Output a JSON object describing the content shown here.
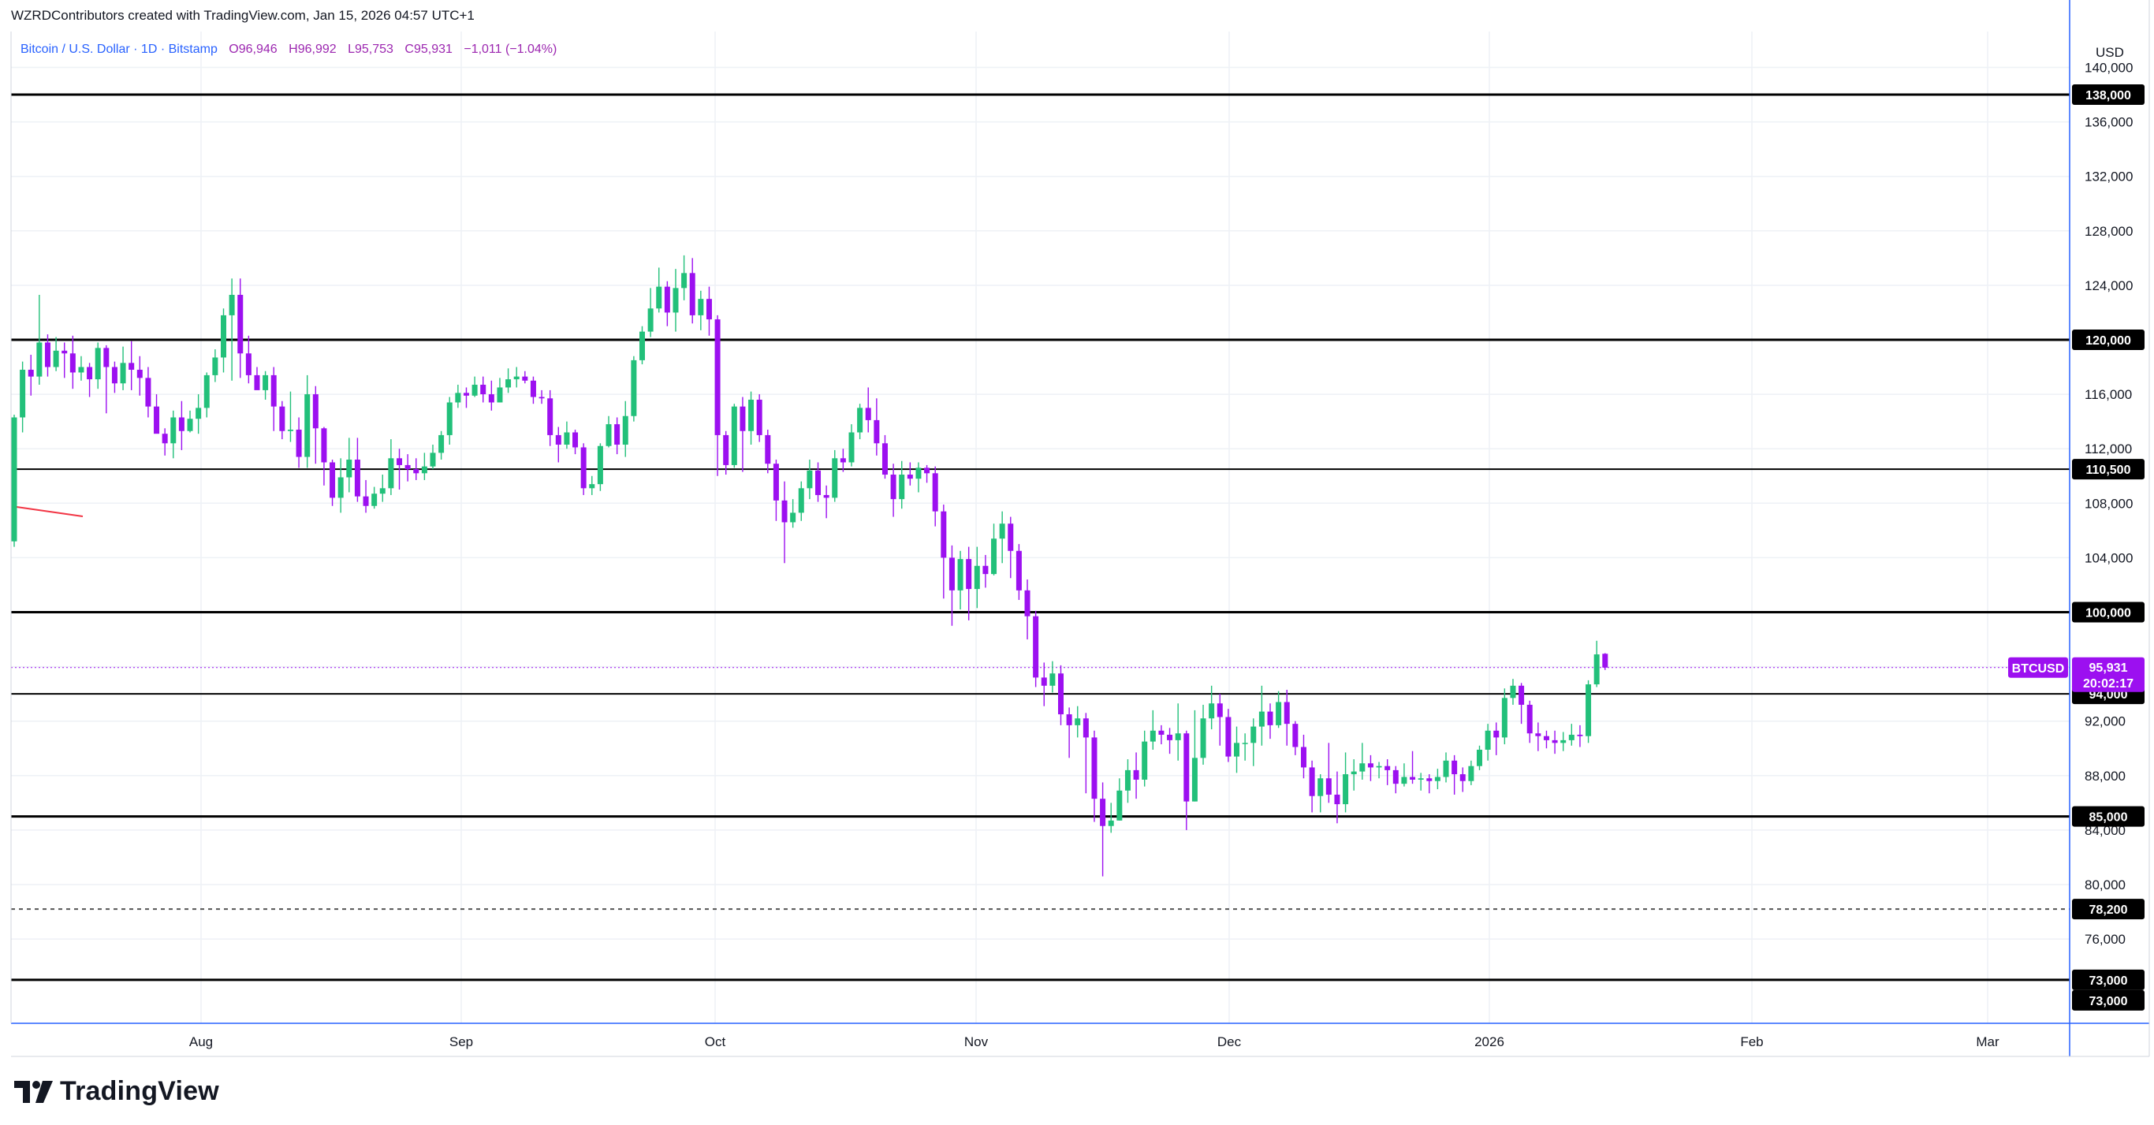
{
  "header": {
    "attribution": "WZRDContributors created with TradingView.com, Jan 15, 2026 04:57 UTC+1"
  },
  "symbol_bar": {
    "name": "Bitcoin / U.S. Dollar · 1D · Bitstamp",
    "open": "O96,946",
    "high": "H96,992",
    "low": "L95,753",
    "close": "C95,931",
    "change": "−1,011 (−1.04%)"
  },
  "price_axis": {
    "currency": "USD",
    "ticks": [
      "140,000",
      "136,000",
      "132,000",
      "128,000",
      "124,000",
      "116,000",
      "112,000",
      "108,000",
      "104,000",
      "92,000",
      "88,000",
      "84,000",
      "80,000",
      "76,000"
    ]
  },
  "time_axis": {
    "ticks": [
      "Aug",
      "Sep",
      "Oct",
      "Nov",
      "Dec",
      "2026",
      "Feb",
      "Mar"
    ]
  },
  "last_price": {
    "symbol": "BTCUSD",
    "value": "95,931",
    "countdown": "20:02:17"
  },
  "horizontal_levels": [
    {
      "value": 138000,
      "label": "138,000",
      "style": "solid"
    },
    {
      "value": 120000,
      "label": "120,000",
      "style": "solid"
    },
    {
      "value": 110500,
      "label": "110,500",
      "style": "solid"
    },
    {
      "value": 100000,
      "label": "100,000",
      "style": "solid"
    },
    {
      "value": 94000,
      "label": "94,000",
      "style": "solid"
    },
    {
      "value": 85000,
      "label": "85,000",
      "style": "solid"
    },
    {
      "value": 78200,
      "label": "78,200",
      "style": "dashed"
    },
    {
      "value": 73000,
      "label": "73,000",
      "style": "solid"
    }
  ],
  "level_extra_label": "73,000",
  "colors": {
    "up": "#22c07a",
    "down": "#9c10f0",
    "line": "#000000",
    "grid": "#eef1f6",
    "trend": "#f23645"
  },
  "footer": {
    "brand": "TradingView"
  },
  "chart_data": {
    "type": "candlestick",
    "title": "Bitcoin / U.S. Dollar · 1D · Bitstamp",
    "ylim": [
      72000,
      142000
    ],
    "x_axis": [
      "Aug",
      "Sep",
      "Oct",
      "Nov",
      "Dec",
      "2026",
      "Feb",
      "Mar"
    ],
    "candles": [
      [
        105200,
        114300,
        114500,
        104800
      ],
      [
        114300,
        117800,
        118400,
        113200
      ],
      [
        117800,
        117300,
        118900,
        115900
      ],
      [
        117300,
        119800,
        123300,
        116700
      ],
      [
        119800,
        118000,
        120400,
        117300
      ],
      [
        118000,
        119200,
        120200,
        117700
      ],
      [
        119200,
        119000,
        119800,
        117200
      ],
      [
        119000,
        117600,
        120300,
        116400
      ],
      [
        117600,
        118000,
        118800,
        117000
      ],
      [
        118000,
        117100,
        118300,
        115800
      ],
      [
        117100,
        119400,
        119800,
        116400
      ],
      [
        119400,
        118000,
        119600,
        114600
      ],
      [
        118000,
        116800,
        118400,
        116100
      ],
      [
        116800,
        118300,
        119500,
        116300
      ],
      [
        118300,
        117800,
        119900,
        116300
      ],
      [
        117800,
        117200,
        118800,
        115900
      ],
      [
        117200,
        115100,
        118000,
        114300
      ],
      [
        115100,
        113100,
        116000,
        113800
      ],
      [
        113100,
        112400,
        113500,
        111500
      ],
      [
        112400,
        114300,
        114800,
        111300
      ],
      [
        114300,
        113300,
        115500,
        111900
      ],
      [
        113300,
        114200,
        114800,
        113200
      ],
      [
        114200,
        115000,
        116000,
        113100
      ],
      [
        115000,
        117400,
        117600,
        114300
      ],
      [
        117400,
        118700,
        119300,
        116900
      ],
      [
        118700,
        121800,
        122300,
        117600
      ],
      [
        121800,
        123300,
        124500,
        117000
      ],
      [
        123300,
        119000,
        124500,
        117200
      ],
      [
        119000,
        117400,
        120300,
        116800
      ],
      [
        117400,
        116300,
        118000,
        116400
      ],
      [
        116300,
        117400,
        117700,
        115600
      ],
      [
        117400,
        115100,
        118000,
        113300
      ],
      [
        115100,
        113300,
        115500,
        112700
      ],
      [
        113300,
        113400,
        116200,
        112500
      ],
      [
        113400,
        111400,
        114300,
        110600
      ],
      [
        111400,
        116000,
        117400,
        110600
      ],
      [
        116000,
        113500,
        116600,
        110900
      ],
      [
        113500,
        111000,
        113600,
        109300
      ],
      [
        111000,
        108400,
        111200,
        107800
      ],
      [
        108400,
        109900,
        111300,
        107300
      ],
      [
        109900,
        111200,
        112800,
        108800
      ],
      [
        111200,
        108500,
        112800,
        108100
      ],
      [
        108500,
        107800,
        109700,
        107300
      ],
      [
        107800,
        108700,
        109200,
        107600
      ],
      [
        108700,
        109100,
        110100,
        108100
      ],
      [
        109100,
        111300,
        112700,
        108600
      ],
      [
        111300,
        110800,
        112000,
        109000
      ],
      [
        110800,
        110500,
        111600,
        109600
      ],
      [
        110500,
        110200,
        111300,
        109700
      ],
      [
        110200,
        110700,
        111700,
        109700
      ],
      [
        110700,
        111700,
        112300,
        110500
      ],
      [
        111700,
        113000,
        113300,
        111200
      ],
      [
        113000,
        115400,
        115800,
        112300
      ],
      [
        115400,
        116100,
        116700,
        115000
      ],
      [
        116100,
        115900,
        116500,
        115000
      ],
      [
        115900,
        116700,
        117300,
        115800
      ],
      [
        116700,
        116000,
        117300,
        115400
      ],
      [
        116000,
        115400,
        117000,
        114800
      ],
      [
        115400,
        116500,
        117200,
        115400
      ],
      [
        116500,
        117100,
        117900,
        116100
      ],
      [
        117100,
        117300,
        118000,
        116500
      ],
      [
        117300,
        117000,
        117700,
        116800
      ],
      [
        117000,
        115800,
        117300,
        115300
      ],
      [
        115800,
        115700,
        116300,
        115300
      ],
      [
        115700,
        113000,
        116300,
        112200
      ],
      [
        113000,
        112300,
        113600,
        111000
      ],
      [
        112300,
        113200,
        114000,
        112000
      ],
      [
        113200,
        112100,
        113400,
        111600
      ],
      [
        112100,
        109100,
        112400,
        108600
      ],
      [
        109100,
        109400,
        110000,
        108600
      ],
      [
        109400,
        112200,
        112400,
        108900
      ],
      [
        112200,
        113800,
        114400,
        112100
      ],
      [
        113800,
        112300,
        114300,
        111600
      ],
      [
        112300,
        114400,
        115500,
        111400
      ],
      [
        114400,
        118500,
        118800,
        114000
      ],
      [
        118500,
        120600,
        121000,
        118200
      ],
      [
        120600,
        122300,
        123800,
        120200
      ],
      [
        122300,
        123900,
        125300,
        122000
      ],
      [
        123900,
        122000,
        124300,
        121000
      ],
      [
        122000,
        123800,
        125200,
        120600
      ],
      [
        123800,
        124900,
        126200,
        122900
      ],
      [
        124900,
        121800,
        126000,
        121200
      ],
      [
        121800,
        123000,
        123600,
        120700
      ],
      [
        123000,
        121500,
        123900,
        120300
      ],
      [
        121500,
        113000,
        121800,
        110000
      ],
      [
        113000,
        110800,
        113300,
        110100
      ],
      [
        110800,
        115100,
        115300,
        110600
      ],
      [
        115100,
        113300,
        115800,
        110300
      ],
      [
        113300,
        115600,
        116200,
        112300
      ],
      [
        115600,
        113000,
        116000,
        112500
      ],
      [
        113000,
        110900,
        113400,
        110200
      ],
      [
        110900,
        108200,
        111200,
        106700
      ],
      [
        108200,
        106600,
        109600,
        103600
      ],
      [
        106600,
        107300,
        108300,
        106200
      ],
      [
        107300,
        109100,
        109600,
        106700
      ],
      [
        109100,
        110400,
        111200,
        108300
      ],
      [
        110400,
        108600,
        111000,
        108100
      ],
      [
        108600,
        108400,
        109300,
        106900
      ],
      [
        108400,
        111300,
        111900,
        108100
      ],
      [
        111300,
        111000,
        112000,
        110300
      ],
      [
        111000,
        113200,
        113800,
        110700
      ],
      [
        113200,
        115000,
        115300,
        112700
      ],
      [
        115000,
        114100,
        116500,
        113200
      ],
      [
        114100,
        112400,
        115700,
        111500
      ],
      [
        112400,
        110100,
        113000,
        109800
      ],
      [
        110100,
        108300,
        110900,
        107000
      ],
      [
        108300,
        110100,
        111100,
        107600
      ],
      [
        110100,
        109800,
        111000,
        109300
      ],
      [
        109800,
        110600,
        111000,
        108800
      ],
      [
        110600,
        110200,
        110800,
        109500
      ],
      [
        110200,
        107400,
        110700,
        106300
      ],
      [
        107400,
        104000,
        107900,
        101000
      ],
      [
        104000,
        101600,
        104900,
        99000
      ],
      [
        101600,
        103900,
        104500,
        100200
      ],
      [
        103900,
        101700,
        104800,
        99400
      ],
      [
        101700,
        103400,
        104800,
        100300
      ],
      [
        103400,
        102800,
        104200,
        101800
      ],
      [
        102800,
        105400,
        106500,
        102700
      ],
      [
        105400,
        106500,
        107400,
        103600
      ],
      [
        106500,
        104500,
        107000,
        102500
      ],
      [
        104500,
        101600,
        105000,
        100900
      ],
      [
        101600,
        99700,
        102400,
        98000
      ],
      [
        99700,
        95200,
        100100,
        94500
      ],
      [
        95200,
        94600,
        96300,
        93100
      ],
      [
        94600,
        95500,
        96400,
        94100
      ],
      [
        95500,
        92500,
        96100,
        91700
      ],
      [
        92500,
        91700,
        93000,
        89300
      ],
      [
        91700,
        92200,
        93100,
        90800
      ],
      [
        92200,
        90800,
        92600,
        86700
      ],
      [
        90800,
        86300,
        91300,
        84600
      ],
      [
        86300,
        84300,
        87500,
        80600
      ],
      [
        84300,
        84700,
        86000,
        83800
      ],
      [
        84700,
        86900,
        87800,
        84700
      ],
      [
        86900,
        88400,
        89200,
        86000
      ],
      [
        88400,
        87700,
        89700,
        86300
      ],
      [
        87700,
        90500,
        91300,
        87200
      ],
      [
        90500,
        91300,
        92800,
        89900
      ],
      [
        91300,
        91000,
        91700,
        90300
      ],
      [
        91000,
        90600,
        91500,
        89600
      ],
      [
        90600,
        91100,
        93300,
        89100
      ],
      [
        91100,
        86100,
        91300,
        84000
      ],
      [
        86100,
        89300,
        92800,
        86100
      ],
      [
        89300,
        92200,
        93200,
        88800
      ],
      [
        92200,
        93300,
        94600,
        91400
      ],
      [
        93300,
        92300,
        94000,
        90200
      ],
      [
        92300,
        89400,
        92900,
        89000
      ],
      [
        89400,
        90400,
        91600,
        88200
      ],
      [
        90400,
        90400,
        91100,
        89100
      ],
      [
        90400,
        91600,
        92200,
        88700
      ],
      [
        91600,
        92700,
        94600,
        90200
      ],
      [
        92700,
        91700,
        93300,
        90700
      ],
      [
        91700,
        93400,
        94200,
        91500
      ],
      [
        93400,
        91800,
        94300,
        90200
      ],
      [
        91800,
        90100,
        92000,
        89500
      ],
      [
        90100,
        88600,
        91000,
        87800
      ],
      [
        88600,
        86500,
        89100,
        85300
      ],
      [
        86500,
        87800,
        88100,
        85300
      ],
      [
        87800,
        86600,
        90400,
        86000
      ],
      [
        86600,
        85900,
        88300,
        84500
      ],
      [
        85900,
        88100,
        89700,
        85300
      ],
      [
        88100,
        88300,
        89200,
        86900
      ],
      [
        88300,
        88900,
        90400,
        87700
      ],
      [
        88900,
        88600,
        89500,
        87600
      ],
      [
        88600,
        88700,
        89000,
        87800
      ],
      [
        88700,
        88400,
        89200,
        87300
      ],
      [
        88400,
        87400,
        88700,
        86700
      ],
      [
        87400,
        87900,
        88900,
        87200
      ],
      [
        87900,
        87700,
        89800,
        87400
      ],
      [
        87700,
        87800,
        88200,
        86900
      ],
      [
        87800,
        87600,
        88100,
        86700
      ],
      [
        87600,
        87900,
        88500,
        87000
      ],
      [
        87900,
        89100,
        89700,
        87500
      ],
      [
        89100,
        88100,
        89500,
        86600
      ],
      [
        88100,
        87600,
        88600,
        86800
      ],
      [
        87600,
        88700,
        89100,
        87300
      ],
      [
        88700,
        89900,
        90200,
        88400
      ],
      [
        89900,
        91300,
        91800,
        89100
      ],
      [
        91300,
        90800,
        91900,
        89500
      ],
      [
        90800,
        93700,
        94400,
        90300
      ],
      [
        93700,
        94600,
        95100,
        93200
      ],
      [
        94600,
        93200,
        94800,
        91800
      ],
      [
        93200,
        91100,
        93500,
        90400
      ],
      [
        91100,
        90900,
        91900,
        89800
      ],
      [
        90900,
        90600,
        91300,
        90000
      ],
      [
        90600,
        90400,
        91300,
        89600
      ],
      [
        90400,
        90600,
        91200,
        89800
      ],
      [
        90600,
        91000,
        91800,
        90200
      ],
      [
        91000,
        90900,
        91700,
        90100
      ],
      [
        90900,
        94700,
        95000,
        90400
      ],
      [
        94700,
        96900,
        97900,
        94500
      ],
      [
        96946,
        95931,
        96992,
        95753
      ]
    ]
  }
}
